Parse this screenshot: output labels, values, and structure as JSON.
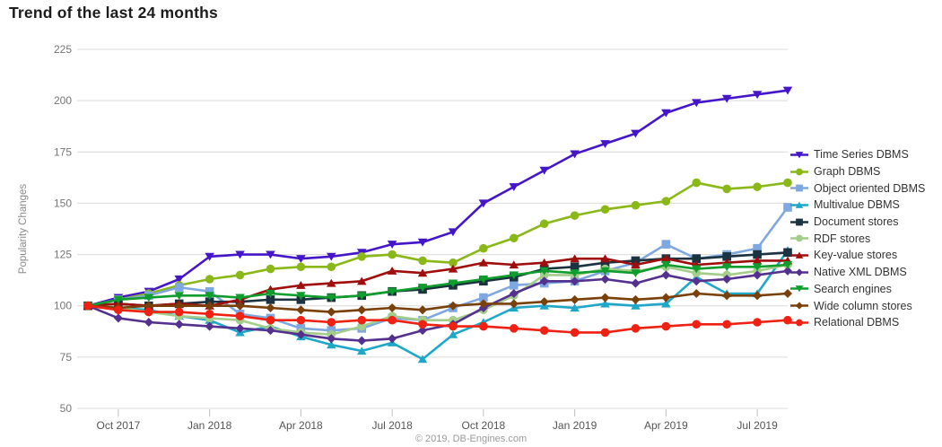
{
  "title": "Trend of the last 24 months",
  "footer": "© 2019, DB-Engines.com",
  "chart_data": {
    "type": "line",
    "title": "Trend of the last 24 months",
    "xlabel": "",
    "ylabel": "Popularity Changes",
    "ylim": [
      50,
      225
    ],
    "y_ticks": [
      50,
      75,
      100,
      125,
      150,
      175,
      200,
      225
    ],
    "grid": true,
    "legend_position": "right",
    "x_categories": [
      "Sep 2017",
      "Oct 2017",
      "Nov 2017",
      "Dec 2017",
      "Jan 2018",
      "Feb 2018",
      "Mar 2018",
      "Apr 2018",
      "May 2018",
      "Jun 2018",
      "Jul 2018",
      "Aug 2018",
      "Sep 2018",
      "Oct 2018",
      "Nov 2018",
      "Dec 2018",
      "Jan 2019",
      "Feb 2019",
      "Mar 2019",
      "Apr 2019",
      "May 2019",
      "Jun 2019",
      "Jul 2019",
      "Aug 2019"
    ],
    "x_tick_labels": [
      "Oct 2017",
      "Jan 2018",
      "Apr 2018",
      "Jul 2018",
      "Oct 2018",
      "Jan 2019",
      "Apr 2019",
      "Jul 2019"
    ],
    "x_tick_month_indices": [
      1,
      4,
      7,
      10,
      13,
      16,
      19,
      22
    ],
    "series": [
      {
        "name": "Time Series DBMS",
        "color": "#4516c9",
        "marker": "triangle-down",
        "values": [
          100,
          104,
          107,
          113,
          124,
          125,
          125,
          123,
          124,
          126,
          130,
          131,
          136,
          150,
          158,
          166,
          174,
          179,
          184,
          194,
          199,
          201,
          203,
          205
        ]
      },
      {
        "name": "Graph DBMS",
        "color": "#8ab819",
        "marker": "circle",
        "values": [
          100,
          103,
          106,
          110,
          113,
          115,
          118,
          119,
          119,
          124,
          125,
          122,
          121,
          128,
          133,
          140,
          144,
          147,
          149,
          151,
          160,
          157,
          158,
          160
        ]
      },
      {
        "name": "Object oriented DBMS",
        "color": "#7fa8e0",
        "marker": "square",
        "values": [
          100,
          103,
          105,
          109,
          107,
          96,
          94,
          89,
          88,
          89,
          94,
          93,
          99,
          104,
          110,
          111,
          112,
          117,
          121,
          130,
          123,
          125,
          128,
          148
        ]
      },
      {
        "name": "Multivalue DBMS",
        "color": "#1ea7c9",
        "marker": "triangle-up",
        "values": [
          100,
          99,
          98,
          95,
          93,
          87,
          90,
          85,
          81,
          78,
          82,
          74,
          86,
          92,
          99,
          100,
          99,
          101,
          100,
          101,
          114,
          106,
          106,
          127
        ]
      },
      {
        "name": "Document stores",
        "color": "#1b3240",
        "marker": "square",
        "values": [
          100,
          101,
          100,
          101,
          102,
          102,
          103,
          103,
          104,
          105,
          107,
          108,
          110,
          112,
          114,
          118,
          119,
          121,
          122,
          123,
          123,
          124,
          125,
          126
        ]
      },
      {
        "name": "RDF stores",
        "color": "#a4cc8a",
        "marker": "circle",
        "values": [
          100,
          99,
          97,
          95,
          94,
          93,
          89,
          87,
          86,
          90,
          95,
          93,
          93,
          98,
          105,
          115,
          115,
          118,
          117,
          119,
          116,
          115,
          117,
          120
        ]
      },
      {
        "name": "Key-value stores",
        "color": "#a00d0d",
        "marker": "triangle-up",
        "values": [
          100,
          101,
          100,
          101,
          100,
          103,
          108,
          110,
          111,
          112,
          117,
          116,
          118,
          121,
          120,
          121,
          123,
          123,
          120,
          123,
          120,
          121,
          122,
          122
        ]
      },
      {
        "name": "Native XML DBMS",
        "color": "#54318f",
        "marker": "diamond",
        "values": [
          100,
          94,
          92,
          91,
          90,
          89,
          88,
          86,
          84,
          83,
          84,
          88,
          91,
          99,
          106,
          112,
          112,
          113,
          111,
          115,
          112,
          113,
          115,
          117
        ]
      },
      {
        "name": "Search engines",
        "color": "#0f9d2d",
        "marker": "triangle-down",
        "values": [
          100,
          103,
          104,
          105,
          105,
          104,
          106,
          105,
          104,
          105,
          107,
          109,
          111,
          113,
          115,
          117,
          116,
          117,
          116,
          120,
          118,
          119,
          119,
          120
        ]
      },
      {
        "name": "Wide column stores",
        "color": "#7a4009",
        "marker": "diamond",
        "values": [
          100,
          99,
          100,
          100,
          100,
          100,
          99,
          98,
          97,
          98,
          99,
          98,
          100,
          101,
          101,
          102,
          103,
          104,
          103,
          104,
          106,
          105,
          105,
          106
        ]
      },
      {
        "name": "Relational DBMS",
        "color": "#ee2112",
        "marker": "circle",
        "values": [
          100,
          98,
          97,
          97,
          96,
          95,
          93,
          93,
          92,
          93,
          93,
          91,
          90,
          90,
          89,
          88,
          87,
          87,
          89,
          90,
          91,
          91,
          92,
          93
        ]
      }
    ],
    "style": {
      "grid_color": "#d9d9d9",
      "tick_color": "#bfbfbf",
      "y_label_color": "#757575",
      "x_label_color": "#545454"
    }
  }
}
